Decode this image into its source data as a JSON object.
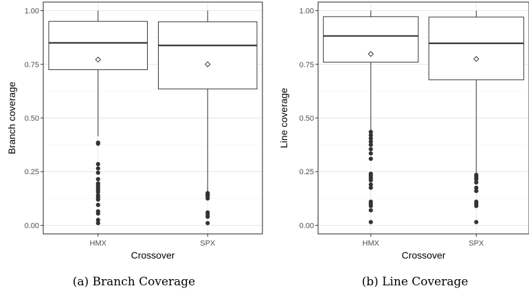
{
  "chart_data": [
    {
      "type": "box",
      "caption": "(a) Branch Coverage",
      "xlabel": "Crossover",
      "ylabel": "Branch coverage",
      "ylim": [
        -0.04,
        1.04
      ],
      "yticks": [
        "0.00",
        "0.25",
        "0.50",
        "0.75",
        "1.00"
      ],
      "categories": [
        "HMX",
        "SPX"
      ],
      "grid": true,
      "boxes": [
        {
          "category": "HMX",
          "whisker_low": 0.415,
          "q1": 0.725,
          "median": 0.85,
          "q3": 0.95,
          "whisker_high": 1.0,
          "mean": 0.772,
          "outliers": [
            0.385,
            0.38,
            0.285,
            0.265,
            0.245,
            0.215,
            0.195,
            0.185,
            0.175,
            0.165,
            0.155,
            0.14,
            0.13,
            0.12,
            0.095,
            0.065,
            0.055,
            0.025,
            0.01
          ]
        },
        {
          "category": "SPX",
          "whisker_low": 0.16,
          "q1": 0.635,
          "median": 0.838,
          "q3": 0.948,
          "whisker_high": 1.0,
          "mean": 0.75,
          "outliers": [
            0.15,
            0.145,
            0.14,
            0.135,
            0.125,
            0.06,
            0.05,
            0.04,
            0.01
          ]
        }
      ]
    },
    {
      "type": "box",
      "caption": "(b) Line Coverage",
      "xlabel": "Crossover",
      "ylabel": "Line coverage",
      "ylim": [
        -0.04,
        1.04
      ],
      "yticks": [
        "0.00",
        "0.25",
        "0.50",
        "0.75",
        "1.00"
      ],
      "categories": [
        "HMX",
        "SPX"
      ],
      "grid": true,
      "boxes": [
        {
          "category": "HMX",
          "whisker_low": 0.44,
          "q1": 0.76,
          "median": 0.882,
          "q3": 0.972,
          "whisker_high": 1.0,
          "mean": 0.798,
          "outliers": [
            0.435,
            0.42,
            0.405,
            0.39,
            0.375,
            0.355,
            0.335,
            0.31,
            0.24,
            0.23,
            0.22,
            0.21,
            0.19,
            0.175,
            0.11,
            0.1,
            0.09,
            0.07,
            0.015
          ]
        },
        {
          "category": "SPX",
          "whisker_low": 0.24,
          "q1": 0.678,
          "median": 0.848,
          "q3": 0.97,
          "whisker_high": 1.0,
          "mean": 0.775,
          "outliers": [
            0.235,
            0.225,
            0.215,
            0.2,
            0.175,
            0.16,
            0.11,
            0.1,
            0.09,
            0.015
          ]
        }
      ]
    }
  ]
}
